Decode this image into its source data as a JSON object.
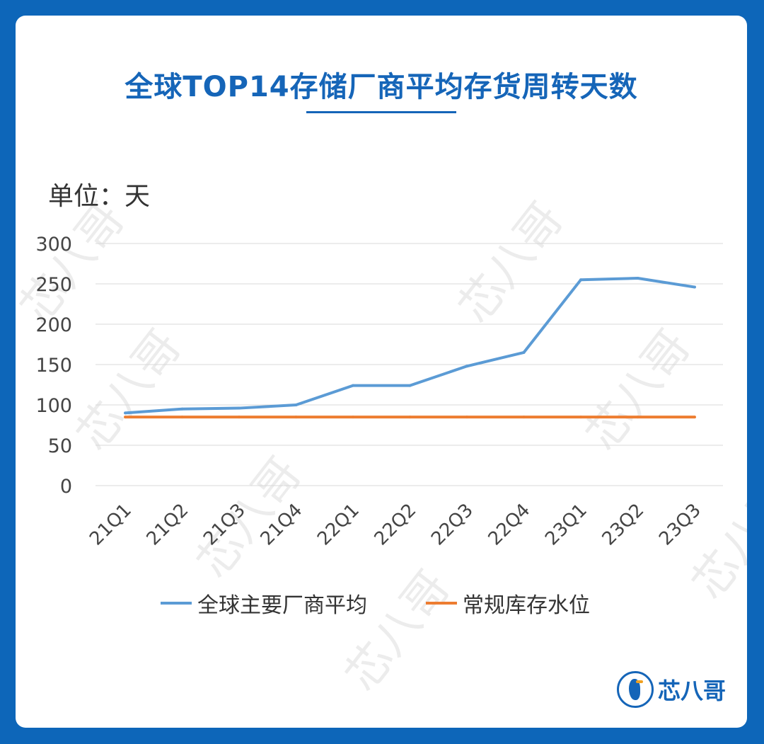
{
  "title": "全球TOP14存储厂商平均存货周转天数",
  "unit_label": "单位：天",
  "watermark_text": "芯八哥",
  "logo_text": "芯八哥",
  "chart_data": {
    "type": "line",
    "title": "全球TOP14存储厂商平均存货周转天数",
    "xlabel": "",
    "ylabel": "单位：天",
    "categories": [
      "21Q1",
      "21Q2",
      "21Q3",
      "21Q4",
      "22Q1",
      "22Q2",
      "22Q3",
      "22Q4",
      "23Q1",
      "23Q2",
      "23Q3"
    ],
    "ylim": [
      0,
      300
    ],
    "yticks": [
      0,
      50,
      100,
      150,
      200,
      250,
      300
    ],
    "grid": true,
    "legend_position": "bottom",
    "series": [
      {
        "name": "全球主要厂商平均",
        "color": "#5b9bd5",
        "values": [
          90,
          95,
          96,
          100,
          124,
          124,
          148,
          165,
          255,
          257,
          246
        ]
      },
      {
        "name": "常规库存水位",
        "color": "#ed7d31",
        "values": [
          85,
          85,
          85,
          85,
          85,
          85,
          85,
          85,
          85,
          85,
          85
        ]
      }
    ]
  }
}
